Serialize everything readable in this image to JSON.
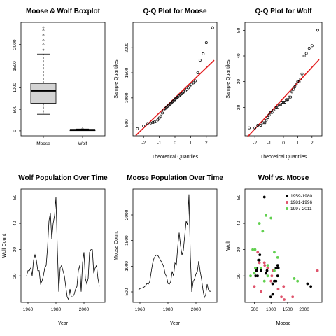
{
  "chart_data": [
    {
      "id": "boxplot",
      "type": "boxplot",
      "title": "Moose & Wolf Boxplot",
      "xlabel": "",
      "ylabel": "",
      "categories": [
        "Moose",
        "Wolf"
      ],
      "ylim": [
        -50,
        2450
      ],
      "yticks": [
        0,
        500,
        1000,
        1500,
        2000
      ],
      "boxes": [
        {
          "name": "Moose",
          "whisker_low": 385,
          "q1": 640,
          "median": 930,
          "q3": 1100,
          "whisker_high": 1780,
          "outliers": [
            1880,
            2000,
            2100,
            2220,
            2330,
            2400
          ]
        },
        {
          "name": "Wolf",
          "whisker_low": 12,
          "q1": 19,
          "median": 23,
          "q3": 28,
          "whisker_high": 42,
          "outliers": [
            50
          ]
        }
      ],
      "box_fill": "#d3d3d3",
      "grid": false
    },
    {
      "id": "qq-moose",
      "type": "scatter",
      "title": "Q-Q Plot for Moose",
      "xlabel": "Theoretical Quantiles",
      "ylabel": "Sample Quantiles",
      "xlim": [
        -2.5,
        2.5
      ],
      "ylim": [
        300,
        2450
      ],
      "xticks": [
        -2,
        -1,
        0,
        1,
        2
      ],
      "yticks": [
        500,
        1000,
        1500,
        2000
      ],
      "points": {
        "x": [
          -2.4,
          -2.0,
          -1.75,
          -1.55,
          -1.4,
          -1.3,
          -1.2,
          -1.1,
          -1.0,
          -0.9,
          -0.8,
          -0.7,
          -0.62,
          -0.55,
          -0.48,
          -0.4,
          -0.33,
          -0.26,
          -0.2,
          -0.13,
          -0.06,
          0.0,
          0.06,
          0.13,
          0.2,
          0.27,
          0.34,
          0.42,
          0.5,
          0.58,
          0.66,
          0.75,
          0.85,
          0.95,
          1.05,
          1.18,
          1.3,
          1.45,
          1.6,
          1.8,
          2.0,
          2.4
        ],
        "y": [
          385,
          440,
          490,
          500,
          510,
          520,
          530,
          560,
          600,
          640,
          700,
          760,
          790,
          810,
          830,
          850,
          870,
          890,
          910,
          930,
          950,
          970,
          990,
          1010,
          1020,
          1040,
          1060,
          1080,
          1100,
          1120,
          1140,
          1170,
          1200,
          1230,
          1270,
          1300,
          1340,
          1500,
          1750,
          1880,
          2100,
          2400
        ]
      },
      "reference_line": {
        "x": [
          -2.5,
          2.5
        ],
        "y": [
          250,
          1750
        ],
        "color": "#e31a1c"
      },
      "grid": false
    },
    {
      "id": "qq-wolf",
      "type": "scatter",
      "title": "Q-Q Plot for Wolf",
      "xlabel": "Theoretical Quantiles",
      "ylabel": "Sample Quantiles",
      "xlim": [
        -2.5,
        2.5
      ],
      "ylim": [
        10,
        52
      ],
      "xticks": [
        -2,
        -1,
        0,
        1,
        2
      ],
      "yticks": [
        20,
        30,
        40,
        50
      ],
      "points": {
        "x": [
          -2.4,
          -2.0,
          -1.8,
          -1.6,
          -1.45,
          -1.3,
          -1.2,
          -1.1,
          -1.0,
          -0.9,
          -0.8,
          -0.7,
          -0.6,
          -0.5,
          -0.4,
          -0.3,
          -0.2,
          -0.1,
          0.0,
          0.1,
          0.2,
          0.3,
          0.4,
          0.5,
          0.6,
          0.7,
          0.8,
          0.9,
          1.0,
          1.1,
          1.2,
          1.3,
          1.45,
          1.6,
          1.8,
          2.0,
          2.4
        ],
        "y": [
          12,
          12,
          13,
          13,
          14,
          14,
          15,
          16,
          17,
          18,
          18,
          19,
          19,
          20,
          20,
          21,
          21,
          22,
          22,
          22,
          23,
          23,
          24,
          24,
          26,
          27,
          28,
          29,
          30,
          30,
          31,
          33,
          40,
          41,
          43,
          44,
          50
        ]
      },
      "reference_line": {
        "x": [
          -2.5,
          2.5
        ],
        "y": [
          8.6,
          38.6
        ],
        "color": "#e31a1c"
      },
      "grid": false
    },
    {
      "id": "wolf-time",
      "type": "line",
      "title": "Wolf Population Over Time",
      "xlabel": "Year",
      "ylabel": "Wolf Count",
      "xlim": [
        1957,
        2013
      ],
      "ylim": [
        11,
        52
      ],
      "xticks": [
        1960,
        1980,
        2000
      ],
      "yticks": [
        20,
        30,
        40,
        50
      ],
      "series": [
        {
          "x": [
            1959,
            1960,
            1961,
            1962,
            1963,
            1964,
            1965,
            1966,
            1967,
            1968,
            1969,
            1970,
            1971,
            1972,
            1973,
            1974,
            1975,
            1976,
            1977,
            1978,
            1979,
            1980,
            1981,
            1982,
            1983,
            1984,
            1985,
            1986,
            1987,
            1988,
            1989,
            1990,
            1991,
            1992,
            1993,
            1994,
            1995,
            1996,
            1997,
            1998,
            1999,
            2000,
            2001,
            2002,
            2003,
            2004,
            2005,
            2006,
            2007,
            2008,
            2009,
            2010,
            2011
          ],
          "y": [
            20,
            22,
            22,
            23,
            20,
            26,
            28,
            26,
            22,
            22,
            17,
            18,
            20,
            23,
            24,
            31,
            41,
            44,
            34,
            40,
            43,
            50,
            30,
            14,
            23,
            24,
            22,
            20,
            16,
            12,
            11,
            15,
            12,
            12,
            13,
            15,
            16,
            22,
            24,
            14,
            25,
            29,
            19,
            17,
            19,
            29,
            30,
            30,
            21,
            23,
            24,
            19,
            16
          ]
        }
      ],
      "grid": false
    },
    {
      "id": "moose-time",
      "type": "line",
      "title": "Moose Population Over Time",
      "xlabel": "Year",
      "ylabel": "Moose Count",
      "xlim": [
        1957,
        2013
      ],
      "ylim": [
        350,
        2450
      ],
      "xticks": [
        1960,
        1980,
        2000
      ],
      "yticks": [
        500,
        1000,
        1500,
        2000
      ],
      "series": [
        {
          "x": [
            1959,
            1960,
            1961,
            1962,
            1963,
            1964,
            1965,
            1966,
            1967,
            1968,
            1969,
            1970,
            1971,
            1972,
            1973,
            1974,
            1975,
            1976,
            1977,
            1978,
            1979,
            1980,
            1981,
            1982,
            1983,
            1984,
            1985,
            1986,
            1987,
            1988,
            1989,
            1990,
            1991,
            1992,
            1993,
            1994,
            1995,
            1996,
            1997,
            1998,
            1999,
            2000,
            2001,
            2002,
            2003,
            2004,
            2005,
            2006,
            2007,
            2008,
            2009,
            2010,
            2011
          ],
          "y": [
            538,
            564,
            572,
            579,
            596,
            620,
            664,
            650,
            700,
            880,
            1050,
            1150,
            1200,
            1220,
            1200,
            1150,
            1100,
            1050,
            990,
            850,
            800,
            664,
            650,
            700,
            900,
            811,
            1062,
            1025,
            1380,
            1653,
            1397,
            1216,
            1313,
            1600,
            1880,
            1800,
            2400,
            1200,
            500,
            700,
            750,
            850,
            900,
            1100,
            900,
            750,
            540,
            385,
            450,
            650,
            530,
            510,
            515
          ]
        }
      ],
      "grid": false
    },
    {
      "id": "wolf-vs-moose",
      "type": "scatter",
      "title": "Wolf vs. Moose",
      "xlabel": "Moose",
      "ylabel": "Wolf",
      "xlim": [
        300,
        2450
      ],
      "ylim": [
        11,
        52
      ],
      "xticks": [
        500,
        1000,
        1500,
        2000
      ],
      "yticks": [
        20,
        30,
        40,
        50
      ],
      "legend_position": "top-right",
      "series": [
        {
          "name": "1959-1980",
          "color": "#000000",
          "x": [
            538,
            564,
            572,
            579,
            596,
            620,
            664,
            650,
            700,
            880,
            1050,
            1150,
            1200,
            1220,
            1200,
            1150,
            1100,
            1050,
            990,
            850,
            800,
            2100,
            2200
          ],
          "y": [
            20,
            22,
            22,
            23,
            20,
            26,
            28,
            26,
            22,
            22,
            17,
            18,
            20,
            23,
            24,
            23,
            18,
            13,
            12,
            21,
            50,
            17,
            16
          ]
        },
        {
          "name": "1981-1996",
          "color": "#df536b",
          "x": [
            500,
            650,
            700,
            900,
            811,
            1062,
            1025,
            1380,
            1653,
            1397,
            1216,
            1313,
            600,
            800,
            1000,
            2400
          ],
          "y": [
            16,
            25,
            14,
            23,
            24,
            22,
            20,
            16,
            12,
            11,
            15,
            12,
            29,
            25,
            18,
            22
          ]
        },
        {
          "name": "1997-2011",
          "color": "#61d04f",
          "x": [
            385,
            450,
            500,
            520,
            530,
            650,
            700,
            750,
            850,
            900,
            1000,
            1100,
            1200,
            1700,
            1800,
            900,
            800,
            1100
          ],
          "y": [
            20,
            30,
            21,
            30,
            23,
            40,
            23,
            37,
            43,
            24,
            42,
            29,
            27,
            19,
            18,
            20,
            18,
            22
          ]
        }
      ],
      "grid": false
    }
  ]
}
